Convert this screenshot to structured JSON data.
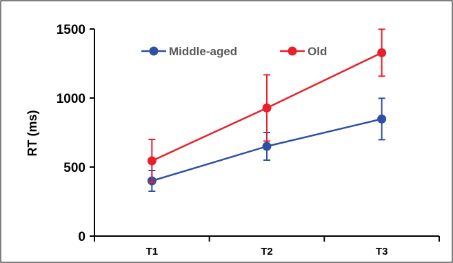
{
  "chart_data": {
    "type": "line",
    "title": "",
    "xlabel": "",
    "ylabel": "RT (ms)",
    "categories": [
      "T1",
      "T2",
      "T3"
    ],
    "ylim": [
      0,
      1500
    ],
    "yticks": [
      "0",
      "500",
      "1000",
      "1500"
    ],
    "grid": false,
    "legend_position": "top",
    "series": [
      {
        "name": "Middle-aged",
        "color": "#2E4FA3",
        "values": [
          400,
          650,
          848
        ],
        "error_low": [
          75,
          100,
          150
        ],
        "error_high": [
          75,
          100,
          150
        ]
      },
      {
        "name": "Old",
        "color": "#E8202A",
        "values": [
          545,
          928,
          1328
        ],
        "error_low": [
          155,
          240,
          170
        ],
        "error_high": [
          155,
          240,
          170
        ]
      }
    ]
  }
}
